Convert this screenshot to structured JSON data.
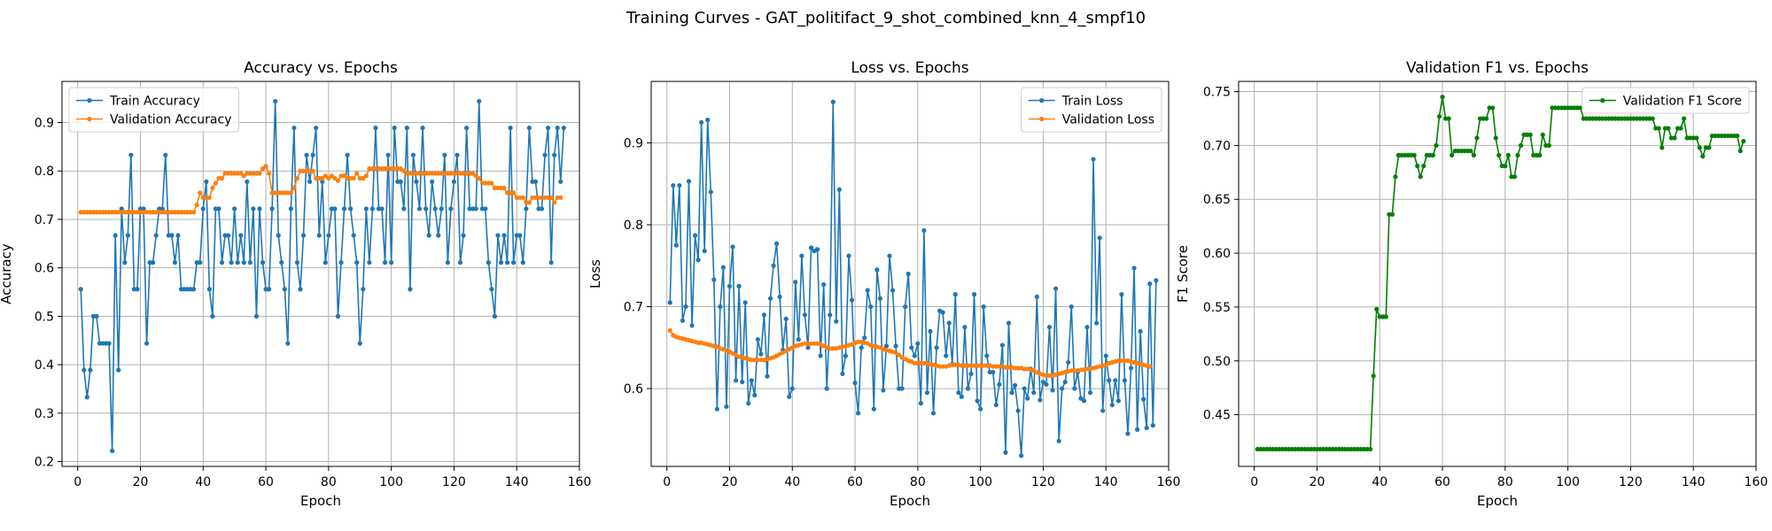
{
  "figure": {
    "suptitle": "Training Curves - GAT_politifact_9_shot_combined_knn_4_smpf10"
  },
  "colors": {
    "train": "#1f77b4",
    "validation": "#ff7f0e",
    "f1": "#008000",
    "grid": "#b0b0b0"
  },
  "chart_data": [
    {
      "type": "line",
      "title": "Accuracy vs. Epochs",
      "xlabel": "Epoch",
      "ylabel": "Accuracy",
      "xlim": [
        -5,
        160
      ],
      "ylim": [
        0.19,
        0.985
      ],
      "xticks": [
        0,
        20,
        40,
        60,
        80,
        100,
        120,
        140,
        160
      ],
      "yticks": [
        0.2,
        0.3,
        0.4,
        0.5,
        0.6,
        0.7,
        0.8,
        0.9
      ],
      "grid": true,
      "legend_placement": "top-left",
      "series": [
        {
          "name": "Train Accuracy",
          "color": "#1f77b4",
          "x_start": 1,
          "values": [
            0.556,
            0.389,
            0.333,
            0.389,
            0.5,
            0.5,
            0.444,
            0.444,
            0.444,
            0.444,
            0.222,
            0.667,
            0.389,
            0.722,
            0.611,
            0.667,
            0.833,
            0.556,
            0.556,
            0.722,
            0.722,
            0.444,
            0.611,
            0.611,
            0.667,
            0.722,
            0.722,
            0.833,
            0.667,
            0.667,
            0.611,
            0.667,
            0.556,
            0.556,
            0.556,
            0.556,
            0.556,
            0.611,
            0.611,
            0.722,
            0.778,
            0.556,
            0.5,
            0.722,
            0.722,
            0.611,
            0.667,
            0.667,
            0.611,
            0.722,
            0.611,
            0.667,
            0.611,
            0.778,
            0.611,
            0.722,
            0.5,
            0.722,
            0.611,
            0.556,
            0.556,
            0.722,
            0.944,
            0.667,
            0.611,
            0.556,
            0.444,
            0.722,
            0.889,
            0.611,
            0.556,
            0.667,
            0.833,
            0.778,
            0.833,
            0.889,
            0.667,
            0.778,
            0.611,
            0.667,
            0.722,
            0.722,
            0.5,
            0.611,
            0.722,
            0.833,
            0.722,
            0.667,
            0.611,
            0.444,
            0.556,
            0.722,
            0.611,
            0.722,
            0.889,
            0.722,
            0.722,
            0.611,
            0.833,
            0.611,
            0.889,
            0.778,
            0.778,
            0.722,
            0.889,
            0.556,
            0.833,
            0.778,
            0.722,
            0.889,
            0.722,
            0.667,
            0.778,
            0.722,
            0.667,
            0.722,
            0.833,
            0.611,
            0.722,
            0.778,
            0.833,
            0.611,
            0.667,
            0.889,
            0.722,
            0.722,
            0.722,
            0.944,
            0.722,
            0.722,
            0.611,
            0.556,
            0.5,
            0.667,
            0.611,
            0.667,
            0.611,
            0.889,
            0.611,
            0.667,
            0.667,
            0.611,
            0.722,
            0.889,
            0.778,
            0.778,
            0.722,
            0.722,
            0.833,
            0.889,
            0.611,
            0.833,
            0.889,
            0.778,
            0.889
          ]
        },
        {
          "name": "Validation Accuracy",
          "color": "#ff7f0e",
          "x_start": 1,
          "values": [
            0.715,
            0.715,
            0.715,
            0.715,
            0.715,
            0.715,
            0.715,
            0.715,
            0.715,
            0.715,
            0.715,
            0.715,
            0.715,
            0.715,
            0.715,
            0.715,
            0.715,
            0.715,
            0.715,
            0.715,
            0.715,
            0.715,
            0.715,
            0.715,
            0.715,
            0.715,
            0.715,
            0.715,
            0.715,
            0.715,
            0.715,
            0.715,
            0.715,
            0.715,
            0.715,
            0.715,
            0.715,
            0.73,
            0.755,
            0.745,
            0.745,
            0.745,
            0.765,
            0.775,
            0.785,
            0.785,
            0.795,
            0.795,
            0.795,
            0.795,
            0.795,
            0.795,
            0.79,
            0.795,
            0.795,
            0.795,
            0.795,
            0.795,
            0.805,
            0.81,
            0.795,
            0.755,
            0.755,
            0.755,
            0.755,
            0.755,
            0.755,
            0.755,
            0.765,
            0.785,
            0.8,
            0.8,
            0.8,
            0.8,
            0.8,
            0.785,
            0.785,
            0.785,
            0.79,
            0.785,
            0.79,
            0.785,
            0.78,
            0.79,
            0.79,
            0.785,
            0.785,
            0.785,
            0.795,
            0.785,
            0.785,
            0.79,
            0.805,
            0.805,
            0.805,
            0.805,
            0.805,
            0.805,
            0.805,
            0.805,
            0.805,
            0.805,
            0.805,
            0.8,
            0.795,
            0.795,
            0.795,
            0.795,
            0.795,
            0.795,
            0.795,
            0.795,
            0.795,
            0.795,
            0.795,
            0.795,
            0.795,
            0.795,
            0.795,
            0.795,
            0.795,
            0.795,
            0.795,
            0.795,
            0.795,
            0.795,
            0.79,
            0.785,
            0.775,
            0.775,
            0.775,
            0.775,
            0.765,
            0.765,
            0.765,
            0.765,
            0.755,
            0.755,
            0.755,
            0.745,
            0.745,
            0.745,
            0.735,
            0.735,
            0.745,
            0.745,
            0.745,
            0.745,
            0.745,
            0.745,
            0.745,
            0.735,
            0.745,
            0.745
          ]
        }
      ]
    },
    {
      "type": "line",
      "title": "Loss vs. Epochs",
      "xlabel": "Epoch",
      "ylabel": "Loss",
      "xlim": [
        -5,
        160
      ],
      "ylim": [
        0.505,
        0.975
      ],
      "xticks": [
        0,
        20,
        40,
        60,
        80,
        100,
        120,
        140,
        160
      ],
      "yticks": [
        0.5,
        0.6,
        0.7,
        0.8,
        0.9
      ],
      "grid": true,
      "legend_placement": "top-right",
      "series": [
        {
          "name": "Train Loss",
          "color": "#1f77b4",
          "x_start": 1,
          "values": [
            0.705,
            0.848,
            0.775,
            0.848,
            0.683,
            0.7,
            0.853,
            0.677,
            0.787,
            0.757,
            0.925,
            0.768,
            0.928,
            0.84,
            0.733,
            0.575,
            0.7,
            0.748,
            0.578,
            0.725,
            0.773,
            0.61,
            0.725,
            0.608,
            0.705,
            0.582,
            0.61,
            0.592,
            0.66,
            0.642,
            0.69,
            0.615,
            0.71,
            0.75,
            0.777,
            0.712,
            0.647,
            0.685,
            0.59,
            0.6,
            0.73,
            0.66,
            0.762,
            0.69,
            0.65,
            0.772,
            0.768,
            0.77,
            0.64,
            0.727,
            0.6,
            0.69,
            0.95,
            0.682,
            0.843,
            0.618,
            0.64,
            0.762,
            0.708,
            0.607,
            0.57,
            0.65,
            0.662,
            0.72,
            0.7,
            0.575,
            0.745,
            0.71,
            0.598,
            0.652,
            0.762,
            0.72,
            0.652,
            0.6,
            0.6,
            0.7,
            0.74,
            0.65,
            0.64,
            0.655,
            0.582,
            0.793,
            0.595,
            0.67,
            0.57,
            0.65,
            0.695,
            0.693,
            0.64,
            0.68,
            0.63,
            0.715,
            0.595,
            0.59,
            0.675,
            0.6,
            0.618,
            0.715,
            0.585,
            0.575,
            0.7,
            0.64,
            0.62,
            0.62,
            0.58,
            0.605,
            0.653,
            0.522,
            0.68,
            0.595,
            0.604,
            0.573,
            0.518,
            0.6,
            0.588,
            0.624,
            0.595,
            0.712,
            0.586,
            0.608,
            0.605,
            0.675,
            0.598,
            0.722,
            0.536,
            0.6,
            0.608,
            0.632,
            0.7,
            0.6,
            0.62,
            0.588,
            0.585,
            0.675,
            0.595,
            0.88,
            0.68,
            0.784,
            0.573,
            0.64,
            0.61,
            0.58,
            0.61,
            0.585,
            0.715,
            0.61,
            0.545,
            0.625,
            0.747,
            0.55,
            0.67,
            0.587,
            0.552,
            0.728,
            0.555,
            0.732
          ]
        },
        {
          "name": "Validation Loss",
          "color": "#ff7f0e",
          "x_start": 1,
          "values": [
            0.671,
            0.665,
            0.663,
            0.662,
            0.661,
            0.66,
            0.659,
            0.658,
            0.657,
            0.656,
            0.656,
            0.655,
            0.654,
            0.653,
            0.652,
            0.651,
            0.649,
            0.648,
            0.646,
            0.645,
            0.643,
            0.641,
            0.639,
            0.638,
            0.637,
            0.636,
            0.635,
            0.635,
            0.635,
            0.635,
            0.635,
            0.636,
            0.637,
            0.638,
            0.64,
            0.642,
            0.644,
            0.646,
            0.648,
            0.65,
            0.652,
            0.653,
            0.654,
            0.655,
            0.655,
            0.655,
            0.655,
            0.655,
            0.654,
            0.652,
            0.65,
            0.649,
            0.649,
            0.649,
            0.65,
            0.651,
            0.652,
            0.653,
            0.654,
            0.656,
            0.657,
            0.657,
            0.656,
            0.655,
            0.653,
            0.652,
            0.651,
            0.65,
            0.648,
            0.647,
            0.646,
            0.645,
            0.644,
            0.641,
            0.638,
            0.636,
            0.634,
            0.633,
            0.631,
            0.631,
            0.631,
            0.631,
            0.631,
            0.63,
            0.629,
            0.628,
            0.627,
            0.627,
            0.627,
            0.628,
            0.629,
            0.629,
            0.629,
            0.628,
            0.628,
            0.628,
            0.628,
            0.628,
            0.628,
            0.628,
            0.628,
            0.628,
            0.628,
            0.627,
            0.627,
            0.627,
            0.627,
            0.626,
            0.626,
            0.626,
            0.625,
            0.625,
            0.625,
            0.624,
            0.624,
            0.623,
            0.622,
            0.62,
            0.618,
            0.617,
            0.616,
            0.616,
            0.616,
            0.617,
            0.618,
            0.619,
            0.62,
            0.621,
            0.622,
            0.622,
            0.622,
            0.623,
            0.623,
            0.624,
            0.624,
            0.625,
            0.626,
            0.627,
            0.628,
            0.629,
            0.631,
            0.632,
            0.633,
            0.634,
            0.634,
            0.634,
            0.634,
            0.633,
            0.632,
            0.631,
            0.63,
            0.629,
            0.628,
            0.627
          ]
        }
      ]
    },
    {
      "type": "line",
      "title": "Validation F1 vs. Epochs",
      "xlabel": "Epoch",
      "ylabel": "F1 Score",
      "xlim": [
        -5,
        160
      ],
      "ylim": [
        0.402,
        0.7595
      ],
      "xticks": [
        0,
        20,
        40,
        60,
        80,
        100,
        120,
        140,
        160
      ],
      "yticks": [
        0.45,
        0.5,
        0.55,
        0.6,
        0.65,
        0.7,
        0.75
      ],
      "grid": true,
      "legend_placement": "top-right",
      "series": [
        {
          "name": "Validation F1 Score",
          "color": "#008000",
          "x_start": 1,
          "values": [
            0.418,
            0.418,
            0.418,
            0.418,
            0.418,
            0.418,
            0.418,
            0.418,
            0.418,
            0.418,
            0.418,
            0.418,
            0.418,
            0.418,
            0.418,
            0.418,
            0.418,
            0.418,
            0.418,
            0.418,
            0.418,
            0.418,
            0.418,
            0.418,
            0.418,
            0.418,
            0.418,
            0.418,
            0.418,
            0.418,
            0.418,
            0.418,
            0.418,
            0.418,
            0.418,
            0.418,
            0.418,
            0.486,
            0.548,
            0.541,
            0.541,
            0.541,
            0.636,
            0.636,
            0.671,
            0.691,
            0.691,
            0.691,
            0.691,
            0.691,
            0.691,
            0.681,
            0.671,
            0.681,
            0.691,
            0.691,
            0.691,
            0.7,
            0.727,
            0.745,
            0.725,
            0.725,
            0.691,
            0.695,
            0.695,
            0.695,
            0.695,
            0.695,
            0.695,
            0.691,
            0.707,
            0.725,
            0.725,
            0.725,
            0.735,
            0.735,
            0.707,
            0.691,
            0.681,
            0.681,
            0.691,
            0.671,
            0.671,
            0.691,
            0.7,
            0.71,
            0.71,
            0.71,
            0.691,
            0.691,
            0.691,
            0.71,
            0.7,
            0.7,
            0.735,
            0.735,
            0.735,
            0.735,
            0.735,
            0.735,
            0.735,
            0.735,
            0.735,
            0.735,
            0.725,
            0.725,
            0.725,
            0.725,
            0.725,
            0.725,
            0.725,
            0.725,
            0.725,
            0.725,
            0.725,
            0.725,
            0.725,
            0.725,
            0.725,
            0.725,
            0.725,
            0.725,
            0.725,
            0.725,
            0.725,
            0.725,
            0.725,
            0.716,
            0.716,
            0.698,
            0.716,
            0.716,
            0.707,
            0.707,
            0.716,
            0.716,
            0.725,
            0.707,
            0.707,
            0.707,
            0.707,
            0.698,
            0.69,
            0.698,
            0.698,
            0.709,
            0.709,
            0.709,
            0.709,
            0.709,
            0.709,
            0.709,
            0.709,
            0.709,
            0.695,
            0.704
          ]
        }
      ]
    }
  ]
}
